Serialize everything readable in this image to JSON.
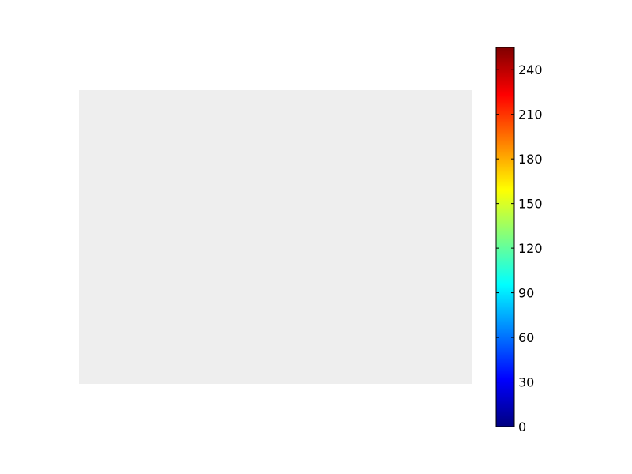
{
  "figure": {
    "background": "#ffffff"
  },
  "chart_data": {
    "type": "heatmap",
    "title": "",
    "xlabel": "",
    "ylabel": "",
    "image": {
      "uniform_color": "#eeeeee",
      "axes_visible": false
    },
    "colorbar": {
      "colormap": "jet",
      "vmin": 0,
      "vmax": 255,
      "ticks": [
        0,
        30,
        60,
        90,
        120,
        150,
        180,
        210,
        240
      ],
      "tick_labels": [
        "0",
        "30",
        "60",
        "90",
        "120",
        "150",
        "180",
        "210",
        "240"
      ],
      "placement": "right",
      "colors": [
        "#000080",
        "#0000ff",
        "#0080ff",
        "#00ffff",
        "#80ff80",
        "#ffff00",
        "#ff8000",
        "#ff0000",
        "#800000"
      ]
    }
  }
}
